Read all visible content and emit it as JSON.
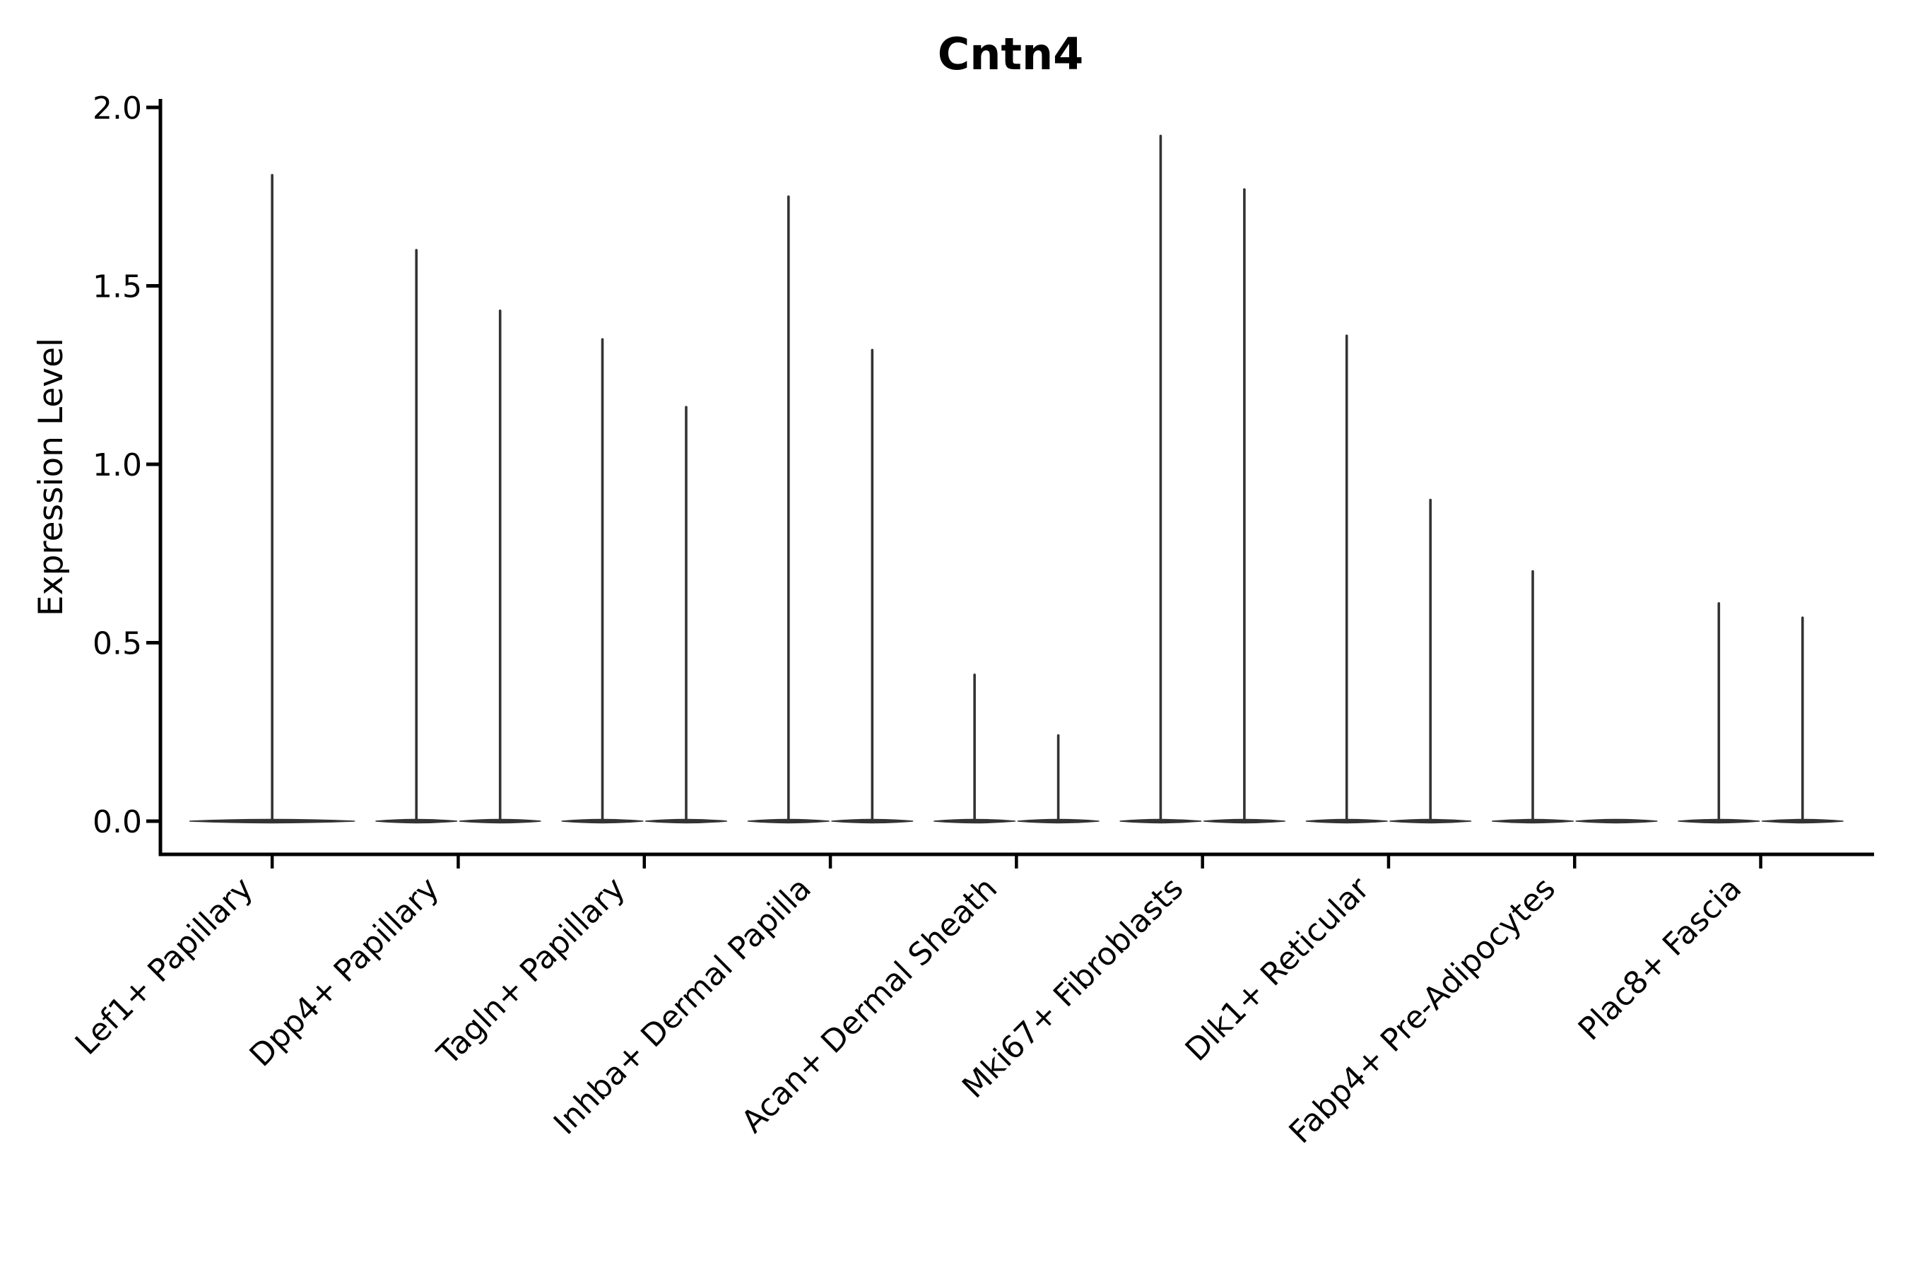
{
  "chart_data": {
    "type": "violin",
    "title": "Cntn4",
    "ylabel": "Expression Level",
    "xlabel": "",
    "ylim": [
      -0.1,
      2.03
    ],
    "yticks": [
      0.0,
      0.5,
      1.0,
      1.5,
      2.0
    ],
    "ytick_labels": [
      "0.0",
      "0.5",
      "1.0",
      "1.5",
      "2.0"
    ],
    "grid": false,
    "legend_position": "none",
    "categories": [
      "Lef1+ Papillary",
      "Dpp4+ Papillary",
      "Tagln+ Papillary",
      "Inhba+ Dermal Papilla",
      "Acan+ Dermal Sheath",
      "Mki67+ Fibroblasts",
      "Dlk1+ Reticular",
      "Fabp4+ Pre-Adipocytes",
      "Plac8+ Fascia"
    ],
    "series": [
      {
        "category": "Lef1+ Papillary",
        "violin_max_values": [
          1.81
        ]
      },
      {
        "category": "Dpp4+ Papillary",
        "violin_max_values": [
          1.6,
          1.43
        ]
      },
      {
        "category": "Tagln+ Papillary",
        "violin_max_values": [
          1.35,
          1.16
        ]
      },
      {
        "category": "Inhba+ Dermal Papilla",
        "violin_max_values": [
          1.75,
          1.32
        ]
      },
      {
        "category": "Acan+ Dermal Sheath",
        "violin_max_values": [
          0.41,
          0.24
        ]
      },
      {
        "category": "Mki67+ Fibroblasts",
        "violin_max_values": [
          1.92,
          1.77
        ]
      },
      {
        "category": "Dlk1+ Reticular",
        "violin_max_values": [
          1.36,
          0.9
        ]
      },
      {
        "category": "Fabp4+ Pre-Adipocytes",
        "violin_max_values": [
          0.7,
          0.0
        ]
      },
      {
        "category": "Plac8+ Fascia",
        "violin_max_values": [
          0.61,
          0.57
        ]
      }
    ],
    "violin_shape_note": "each violin is a thin horizontal density lens at expression 0 with a narrow vertical spike rising to its max value; violins with max 0 show only the flat lens",
    "colors": {
      "violin": "#333333",
      "axes": "#000000",
      "background": "#ffffff"
    }
  }
}
